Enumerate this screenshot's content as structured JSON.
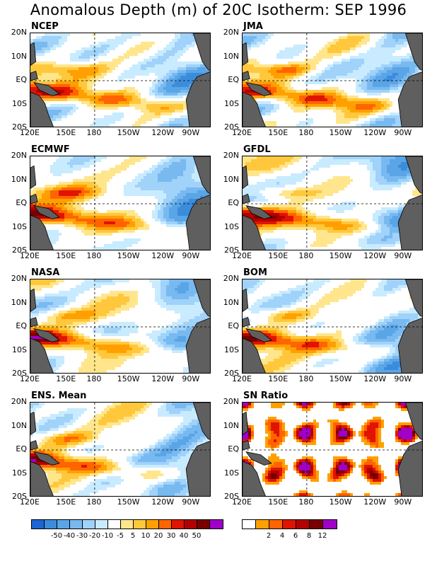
{
  "title": "Anomalous Depth (m) of 20C Isotherm: SEP 1996",
  "lat_labels": [
    "20N",
    "10N",
    "EQ",
    "10S",
    "20S"
  ],
  "lon_labels": [
    "120E",
    "150E",
    "180",
    "150W",
    "120W",
    "90W"
  ],
  "panels": [
    {
      "name": "NCEP",
      "kind": "anom",
      "seed": 11
    },
    {
      "name": "JMA",
      "kind": "anom",
      "seed": 23
    },
    {
      "name": "ECMWF",
      "kind": "anom",
      "seed": 37
    },
    {
      "name": "GFDL",
      "kind": "anom",
      "seed": 41
    },
    {
      "name": "NASA",
      "kind": "anom",
      "seed": 53
    },
    {
      "name": "BOM",
      "kind": "anom",
      "seed": 67
    },
    {
      "name": "ENS. Mean",
      "kind": "anom",
      "seed": 79
    },
    {
      "name": "SN Ratio",
      "kind": "sn",
      "seed": 97
    }
  ],
  "anomaly_scale": {
    "colors": [
      "#1e64d2",
      "#3c8cdc",
      "#5aa5e6",
      "#78b9f0",
      "#a0d2fa",
      "#c8ebff",
      "#ffffff",
      "#ffe68c",
      "#ffc83c",
      "#ffa000",
      "#ff6400",
      "#e11400",
      "#b40000",
      "#780000",
      "#a000c8"
    ],
    "ticks": [
      "-50",
      "-40",
      "-30",
      "-20",
      "-10",
      "-5",
      "5",
      "10",
      "20",
      "30",
      "40",
      "50"
    ]
  },
  "sn_scale": {
    "colors": [
      "#ffffff",
      "#ffa000",
      "#ff6400",
      "#e11400",
      "#b40000",
      "#780000",
      "#a000c8"
    ],
    "ticks": [
      "2",
      "4",
      "6",
      "8",
      "12"
    ]
  },
  "land_color": "#5f5f5f"
}
